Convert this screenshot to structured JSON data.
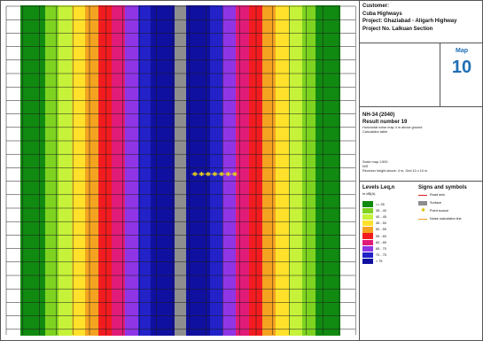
{
  "map": {
    "bands": [
      {
        "color": "#118a11",
        "level": "< 35"
      },
      {
        "color": "#7ed321",
        "level": "35 - 40"
      },
      {
        "color": "#c6f23a",
        "level": "40 - 45"
      },
      {
        "color": "#ffe12b",
        "level": "45 - 50"
      },
      {
        "color": "#f4a321",
        "level": "50 - 55"
      },
      {
        "color": "#f21c20",
        "level": "55 - 60"
      },
      {
        "color": "#e01c78",
        "level": "60 - 65"
      },
      {
        "color": "#8f35e5",
        "level": "65 - 70"
      },
      {
        "color": "#2222c8",
        "level": "70 - 75"
      },
      {
        "color": "#1010a0",
        "level": "> 75"
      }
    ],
    "highway_color": "#8e8e8e",
    "receiver_color": "#e6d21a"
  },
  "panel": {
    "customer": {
      "label": "Customer:",
      "name": "Cuba Highways",
      "project": "Project: Ghaziabad - Aligarh Highway",
      "project_no": "Project No. Lalkuan Section"
    },
    "map_label": "Map",
    "map_number": "10",
    "result": {
      "road": "NH-34 (2040)",
      "result_number": "Result number 19",
      "note1": "Horizontal noise map 4 m above ground",
      "note2": "Calculation table",
      "meta1": "Scale map 1:500",
      "meta2": "N/S",
      "meta3": "Receiver height above: 4 m, Grid 10 x 10 m"
    },
    "legend": {
      "title": "Levels Leq,n",
      "unit": "in dB(A)",
      "items": [
        {
          "color": "#118a11",
          "text": "<= 35"
        },
        {
          "color": "#7ed321",
          "text": "35 - 40"
        },
        {
          "color": "#c6f23a",
          "text": "40 - 45"
        },
        {
          "color": "#ffe12b",
          "text": "45 - 50"
        },
        {
          "color": "#f4a321",
          "text": "50 - 55"
        },
        {
          "color": "#f21c20",
          "text": "55 - 60"
        },
        {
          "color": "#e01c78",
          "text": "60 - 65"
        },
        {
          "color": "#8f35e5",
          "text": "65 - 70"
        },
        {
          "color": "#2222c8",
          "text": "70 - 75"
        },
        {
          "color": "#1010a0",
          "text": "> 75"
        }
      ]
    },
    "signs": {
      "title": "Signs and symbols",
      "items": [
        {
          "symbol": "line-red",
          "text": "Road axis"
        },
        {
          "symbol": "box-grey",
          "text": "Surface"
        },
        {
          "symbol": "star-yellow",
          "text": "Point source"
        },
        {
          "symbol": "line-orange",
          "text": "Noise calculation line"
        }
      ]
    }
  }
}
